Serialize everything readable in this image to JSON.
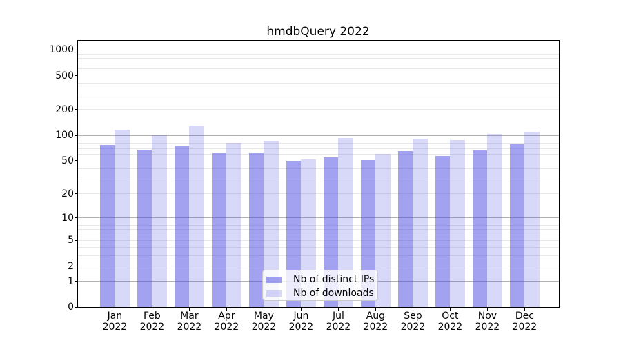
{
  "title": "hmdbQuery 2022",
  "chart_data": {
    "type": "bar",
    "title": "hmdbQuery 2022",
    "year_label": "2022",
    "categories": [
      "Jan",
      "Feb",
      "Mar",
      "Apr",
      "May",
      "Jun",
      "Jul",
      "Aug",
      "Sep",
      "Oct",
      "Nov",
      "Dec"
    ],
    "series": [
      {
        "name": "Nb of distinct IPs",
        "color": "rgba(69,69,225,0.5)",
        "values": [
          77,
          68,
          75,
          62,
          62,
          50,
          55,
          51,
          65,
          57,
          66,
          79
        ]
      },
      {
        "name": "Nb of downloads",
        "color": "rgba(69,69,225,0.21)",
        "values": [
          117,
          100,
          130,
          81,
          86,
          52,
          93,
          60,
          91,
          88,
          103,
          110
        ]
      }
    ],
    "y_scale": "log10(value+1)",
    "ylim": [
      0,
      1281
    ],
    "y_ticks": [
      0,
      1,
      2,
      5,
      10,
      20,
      50,
      100,
      200,
      500,
      1000
    ],
    "y_major_gridlines": [
      1,
      10,
      100,
      1000
    ],
    "y_minor_gridlines": [
      2,
      3,
      4,
      5,
      6,
      7,
      8,
      9,
      20,
      30,
      40,
      60,
      70,
      80,
      90,
      200,
      300,
      400,
      600,
      700,
      800,
      900
    ],
    "grid": "on",
    "legend_position": "lower center",
    "colors": {
      "bar_distinct_ips": "rgba(69,69,225,0.5)",
      "bar_downloads": "rgba(69,69,225,0.21)",
      "major_grid": "#b2b2b2",
      "minor_grid": "#e8e8e8",
      "spine": "#000000",
      "legend_border": "#c9c9c9"
    }
  }
}
